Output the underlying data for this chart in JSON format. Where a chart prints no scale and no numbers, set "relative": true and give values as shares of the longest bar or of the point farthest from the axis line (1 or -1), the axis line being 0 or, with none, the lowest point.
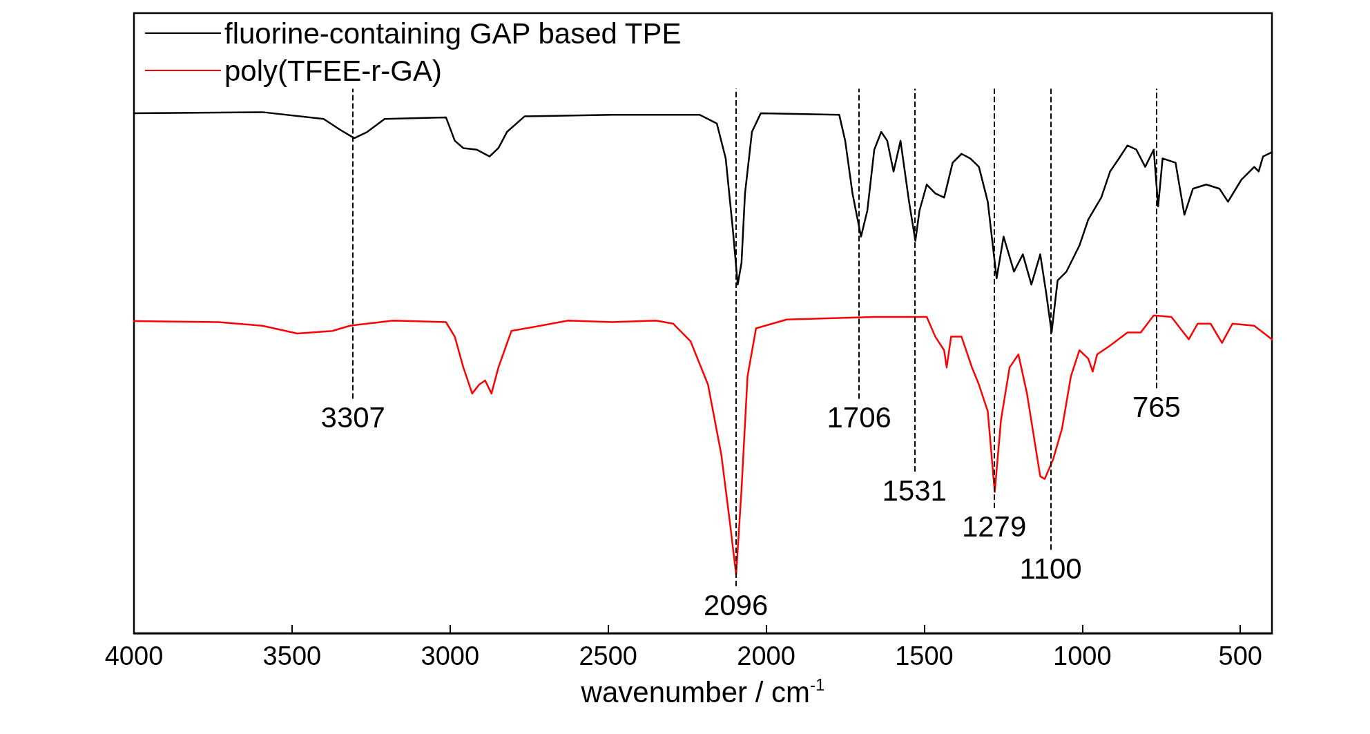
{
  "chart_data": {
    "type": "line",
    "relative": true,
    "xlabel": "wavenumber / cm$^{-1}$",
    "xlim": [
      4000,
      400
    ],
    "xticks": [
      4000,
      3500,
      3000,
      2500,
      2000,
      1500,
      1000,
      500
    ],
    "legend": "top left",
    "grid": false,
    "marker": "none",
    "line_style": "solid",
    "series": [
      {
        "name": "fluorine-containing GAP based TPE",
        "color": "#000000",
        "x": [
          4000,
          3594,
          3400,
          3345,
          3303,
          3262,
          3207,
          3013,
          2985,
          2958,
          2916,
          2875,
          2847,
          2820,
          2764,
          2488,
          2211,
          2156,
          2128,
          2106,
          2090,
          2078,
          2067,
          2045,
          2017,
          1769,
          1750,
          1727,
          1700,
          1680,
          1658,
          1636,
          1617,
          1597,
          1575,
          1548,
          1528,
          1515,
          1492,
          1465,
          1437,
          1410,
          1382,
          1354,
          1327,
          1299,
          1271,
          1249,
          1216,
          1188,
          1161,
          1133,
          1114,
          1097,
          1078,
          1050,
          1009,
          981,
          940,
          912,
          884,
          857,
          829,
          801,
          774,
          760,
          746,
          705,
          677,
          650,
          608,
          566,
          539,
          497,
          456,
          442,
          428,
          400
        ],
        "values": [
          0.998,
          1.0,
          0.987,
          0.965,
          0.95,
          0.962,
          0.987,
          0.99,
          0.945,
          0.931,
          0.928,
          0.915,
          0.931,
          0.962,
          0.992,
          0.995,
          0.995,
          0.978,
          0.911,
          0.778,
          0.669,
          0.711,
          0.844,
          0.962,
          0.998,
          0.995,
          0.945,
          0.844,
          0.761,
          0.811,
          0.928,
          0.962,
          0.945,
          0.886,
          0.945,
          0.828,
          0.753,
          0.811,
          0.861,
          0.844,
          0.836,
          0.903,
          0.92,
          0.911,
          0.895,
          0.828,
          0.681,
          0.761,
          0.694,
          0.727,
          0.669,
          0.727,
          0.652,
          0.577,
          0.677,
          0.694,
          0.744,
          0.794,
          0.836,
          0.886,
          0.911,
          0.936,
          0.928,
          0.895,
          0.928,
          0.819,
          0.911,
          0.903,
          0.803,
          0.853,
          0.861,
          0.853,
          0.828,
          0.87,
          0.895,
          0.886,
          0.915,
          0.923
        ]
      },
      {
        "name": "poly(TFEE-r-GA)",
        "color": "#ff0000",
        "x": [
          4000,
          3732,
          3594,
          3483,
          3372,
          3317,
          3179,
          3013,
          2985,
          2958,
          2930,
          2908,
          2889,
          2869,
          2847,
          2806,
          2626,
          2488,
          2349,
          2294,
          2239,
          2184,
          2142,
          2114,
          2095,
          2078,
          2059,
          2032,
          1935,
          1658,
          1492,
          1465,
          1437,
          1429,
          1415,
          1382,
          1349,
          1327,
          1299,
          1277,
          1257,
          1230,
          1202,
          1175,
          1133,
          1119,
          1092,
          1064,
          1036,
          1009,
          981,
          967,
          953,
          912,
          857,
          815,
          774,
          718,
          663,
          635,
          594,
          558,
          525,
          456,
          400
        ],
        "values": [
          0.599,
          0.597,
          0.59,
          0.575,
          0.58,
          0.59,
          0.6,
          0.597,
          0.569,
          0.51,
          0.46,
          0.477,
          0.485,
          0.46,
          0.51,
          0.58,
          0.6,
          0.597,
          0.6,
          0.594,
          0.56,
          0.477,
          0.343,
          0.209,
          0.112,
          0.276,
          0.493,
          0.585,
          0.602,
          0.607,
          0.607,
          0.569,
          0.543,
          0.51,
          0.569,
          0.569,
          0.51,
          0.477,
          0.426,
          0.271,
          0.41,
          0.51,
          0.535,
          0.46,
          0.301,
          0.296,
          0.334,
          0.393,
          0.493,
          0.543,
          0.527,
          0.502,
          0.535,
          0.552,
          0.577,
          0.577,
          0.61,
          0.607,
          0.564,
          0.594,
          0.594,
          0.557,
          0.594,
          0.59,
          0.564
        ]
      }
    ],
    "ref_lines": [
      {
        "axis": "x",
        "value": 3307,
        "label": "3307",
        "color": "#000000",
        "line_style": "dashed"
      },
      {
        "axis": "x",
        "value": 2096,
        "label": "2096",
        "color": "#000000",
        "line_style": "dashed"
      },
      {
        "axis": "x",
        "value": 1706,
        "label": "1706",
        "color": "#000000",
        "line_style": "dashed"
      },
      {
        "axis": "x",
        "value": 1531,
        "label": "1531",
        "color": "#000000",
        "line_style": "dashed"
      },
      {
        "axis": "x",
        "value": 1279,
        "label": "1279",
        "color": "#000000",
        "line_style": "dashed"
      },
      {
        "axis": "x",
        "value": 1100,
        "label": "1100",
        "color": "#000000",
        "line_style": "dashed"
      },
      {
        "axis": "x",
        "value": 765,
        "label": "765",
        "color": "#000000",
        "line_style": "dashed"
      }
    ]
  }
}
